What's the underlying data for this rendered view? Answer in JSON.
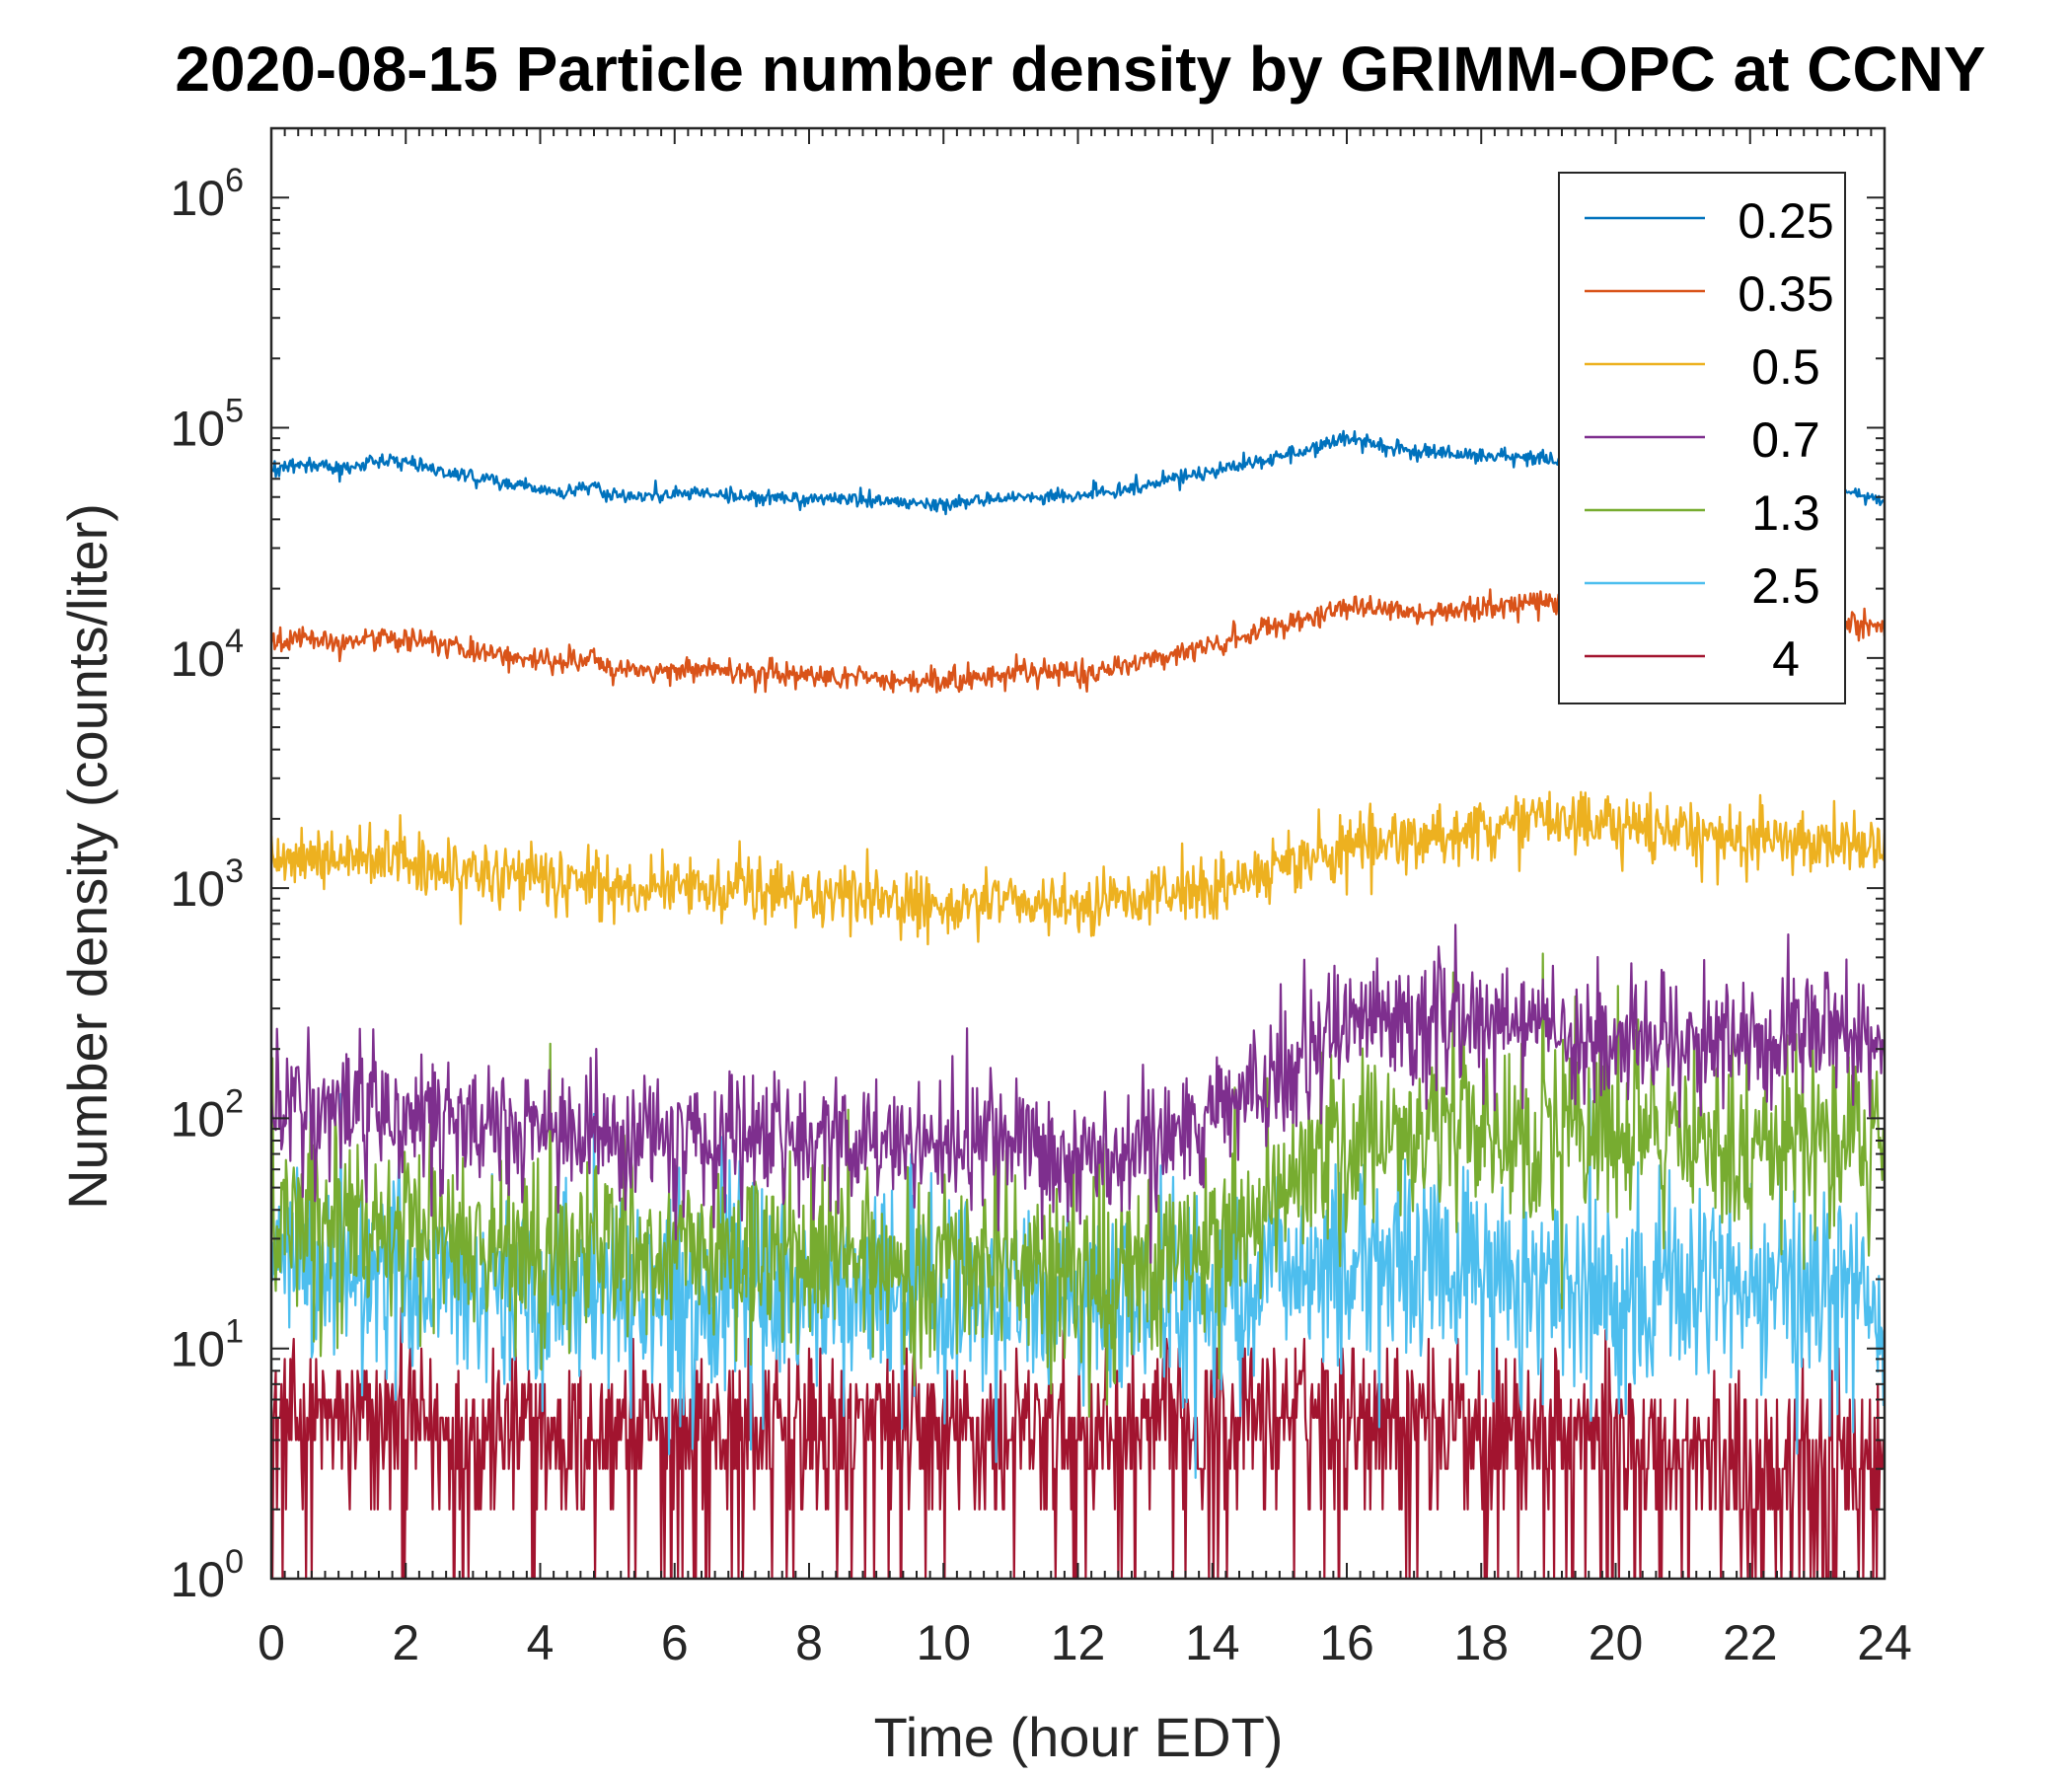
{
  "chart_data": {
    "type": "line",
    "title": "2020-08-15 Particle number density by GRIMM-OPC at CCNY",
    "xlabel": "Time (hour EDT)",
    "ylabel": "Number density (counts/liter)",
    "xlim": [
      0,
      24
    ],
    "ylim": [
      1,
      2000000
    ],
    "yscale": "log",
    "xticks": [
      0,
      2,
      4,
      6,
      8,
      10,
      12,
      14,
      16,
      18,
      20,
      22,
      24
    ],
    "xtick_labels": [
      "0",
      "2",
      "4",
      "6",
      "8",
      "10",
      "12",
      "14",
      "16",
      "18",
      "20",
      "22",
      "24"
    ],
    "yticks": [
      {
        "value": 1,
        "base": "10",
        "exp": "0"
      },
      {
        "value": 10,
        "base": "10",
        "exp": "1"
      },
      {
        "value": 100,
        "base": "10",
        "exp": "2"
      },
      {
        "value": 1000,
        "base": "10",
        "exp": "3"
      },
      {
        "value": 10000,
        "base": "10",
        "exp": "4"
      },
      {
        "value": 100000,
        "base": "10",
        "exp": "5"
      },
      {
        "value": 1000000,
        "base": "10",
        "exp": "6"
      }
    ],
    "legend_position": "top-right",
    "series": [
      {
        "name": "0.25",
        "legend_label": "0.25",
        "color": "#0072BD",
        "noise": 0.012,
        "x": [
          0,
          0.5,
          1,
          1.8,
          2.5,
          3.5,
          4.3,
          4.8,
          5,
          5.5,
          6.3,
          7,
          8,
          9,
          10,
          11,
          12,
          13,
          14,
          15,
          16,
          17,
          18,
          19,
          20,
          21,
          22,
          23,
          24
        ],
        "values": [
          66000,
          70000,
          67000,
          73000,
          65000,
          58000,
          52000,
          56000,
          51000,
          50000,
          53000,
          50000,
          49000,
          48500,
          46000,
          50000,
          50500,
          56000,
          65000,
          75000,
          89000,
          79000,
          76000,
          72000,
          70000,
          65000,
          62000,
          55000,
          48000
        ]
      },
      {
        "name": "0.35",
        "legend_label": "0.35",
        "color": "#D95319",
        "noise": 0.02,
        "x": [
          0,
          0.5,
          1,
          1.8,
          2.5,
          3.5,
          4.3,
          4.8,
          5,
          5.5,
          6.3,
          7,
          8,
          9,
          10,
          11,
          12,
          13,
          14,
          15,
          16,
          17,
          18,
          19,
          20,
          21,
          22,
          23,
          24
        ],
        "values": [
          11500,
          12000,
          11800,
          12500,
          11600,
          10300,
          9500,
          10000,
          9000,
          8700,
          9100,
          8600,
          8400,
          8200,
          7800,
          8600,
          8500,
          9600,
          11500,
          13500,
          17000,
          15500,
          16500,
          17500,
          18000,
          17000,
          16000,
          14500,
          13500
        ]
      },
      {
        "name": "0.5",
        "legend_label": "0.5",
        "color": "#EDB120",
        "noise": 0.05,
        "x": [
          0,
          0.5,
          1,
          1.8,
          2.5,
          3.5,
          4.3,
          4.8,
          5,
          5.5,
          6.3,
          7,
          8,
          9,
          10,
          11,
          12,
          13,
          14,
          15,
          16,
          17,
          18,
          19,
          20,
          21,
          22,
          23,
          24
        ],
        "values": [
          1250,
          1300,
          1280,
          1380,
          1200,
          1130,
          1080,
          1050,
          1020,
          980,
          1000,
          960,
          940,
          920,
          820,
          900,
          840,
          920,
          1000,
          1250,
          1550,
          1650,
          1800,
          2000,
          1900,
          1750,
          1650,
          1600,
          1500
        ]
      },
      {
        "name": "0.7",
        "legend_label": "0.7",
        "color": "#7E2F8E",
        "noise": 0.11,
        "x": [
          0,
          1,
          2,
          3,
          4,
          5,
          6,
          7,
          8,
          9,
          10,
          11,
          12,
          13,
          14,
          15,
          16,
          17,
          18,
          19,
          20,
          21,
          22,
          23,
          24
        ],
        "values": [
          120,
          110,
          105,
          95,
          88,
          82,
          80,
          80,
          78,
          78,
          78,
          72,
          65,
          70,
          95,
          170,
          240,
          280,
          260,
          240,
          230,
          230,
          225,
          225,
          200
        ]
      },
      {
        "name": "1.3",
        "legend_label": "1.3",
        "color": "#77AC30",
        "noise": 0.16,
        "x": [
          0,
          1,
          2,
          3,
          4,
          5,
          6,
          7,
          8,
          9,
          10,
          11,
          12,
          13,
          14,
          15,
          16,
          17,
          18,
          19,
          20,
          21,
          22,
          23,
          24
        ],
        "values": [
          40,
          38,
          34,
          30,
          27,
          26,
          25,
          25,
          24,
          24,
          24,
          22,
          20,
          21,
          28,
          48,
          78,
          95,
          92,
          85,
          80,
          72,
          75,
          80,
          78
        ]
      },
      {
        "name": "2.5",
        "legend_label": "2.5",
        "color": "#4DBEEE",
        "noise": 0.17,
        "x": [
          0,
          1,
          2,
          3,
          4,
          5,
          6,
          7,
          8,
          9,
          10,
          11,
          12,
          13,
          14,
          15,
          16,
          17,
          18,
          19,
          20,
          21,
          22,
          23,
          24
        ],
        "values": [
          25,
          23,
          21,
          19,
          18,
          17,
          17,
          17,
          17,
          17,
          17,
          16,
          15,
          16,
          18,
          22,
          24,
          24,
          22,
          20,
          19,
          18,
          18,
          17,
          16
        ]
      },
      {
        "name": "4",
        "legend_label": "4",
        "color": "#A2142F",
        "noise": 0.0,
        "x": [
          0,
          2,
          4,
          6,
          8,
          10,
          12,
          14,
          16,
          18,
          20,
          22,
          24
        ],
        "values": [
          5,
          5,
          4.5,
          4.5,
          4.5,
          4.5,
          4.5,
          5,
          6,
          5,
          4,
          3.5,
          3
        ]
      }
    ]
  }
}
